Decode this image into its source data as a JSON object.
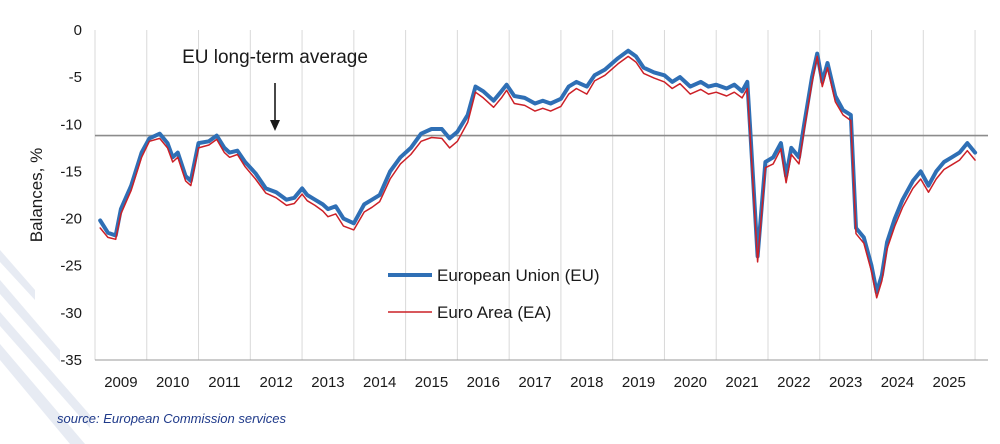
{
  "chart_data": {
    "type": "line",
    "ylabel": "Balances, %",
    "ylim": [
      -35,
      0
    ],
    "yticks": [
      0,
      -5,
      -10,
      -15,
      -20,
      -25,
      -30,
      -35
    ],
    "xlim": [
      2008.5,
      2025.75
    ],
    "year_labels": [
      "2009",
      "2010",
      "2011",
      "2012",
      "2013",
      "2014",
      "2015",
      "2016",
      "2017",
      "2018",
      "2019",
      "2020",
      "2021",
      "2022",
      "2023",
      "2024",
      "2025"
    ],
    "reference_line": {
      "value": -11.2,
      "label": "EU long-term average",
      "arrow_x": 2012.0
    },
    "series": [
      {
        "name": "European Union (EU)",
        "color": "#2f6fb5",
        "points": [
          [
            2008.6,
            -20.2
          ],
          [
            2008.75,
            -21.5
          ],
          [
            2008.9,
            -21.8
          ],
          [
            2009.0,
            -19.0
          ],
          [
            2009.2,
            -16.5
          ],
          [
            2009.4,
            -13.0
          ],
          [
            2009.55,
            -11.5
          ],
          [
            2009.75,
            -11.0
          ],
          [
            2009.9,
            -12.0
          ],
          [
            2010.0,
            -13.5
          ],
          [
            2010.1,
            -13.0
          ],
          [
            2010.25,
            -15.5
          ],
          [
            2010.35,
            -16.0
          ],
          [
            2010.5,
            -12.0
          ],
          [
            2010.7,
            -11.8
          ],
          [
            2010.85,
            -11.2
          ],
          [
            2011.0,
            -12.5
          ],
          [
            2011.1,
            -13.0
          ],
          [
            2011.25,
            -12.8
          ],
          [
            2011.4,
            -14.0
          ],
          [
            2011.6,
            -15.2
          ],
          [
            2011.8,
            -16.8
          ],
          [
            2012.0,
            -17.2
          ],
          [
            2012.2,
            -18.0
          ],
          [
            2012.35,
            -17.8
          ],
          [
            2012.5,
            -16.8
          ],
          [
            2012.6,
            -17.5
          ],
          [
            2012.75,
            -18.0
          ],
          [
            2012.9,
            -18.5
          ],
          [
            2013.0,
            -19.0
          ],
          [
            2013.15,
            -18.7
          ],
          [
            2013.3,
            -20.0
          ],
          [
            2013.5,
            -20.5
          ],
          [
            2013.7,
            -18.5
          ],
          [
            2013.85,
            -18.0
          ],
          [
            2014.0,
            -17.5
          ],
          [
            2014.2,
            -15.0
          ],
          [
            2014.4,
            -13.5
          ],
          [
            2014.6,
            -12.5
          ],
          [
            2014.8,
            -11.0
          ],
          [
            2015.0,
            -10.5
          ],
          [
            2015.2,
            -10.5
          ],
          [
            2015.35,
            -11.5
          ],
          [
            2015.5,
            -10.8
          ],
          [
            2015.7,
            -9.0
          ],
          [
            2015.85,
            -6.0
          ],
          [
            2016.0,
            -6.5
          ],
          [
            2016.2,
            -7.5
          ],
          [
            2016.35,
            -6.5
          ],
          [
            2016.45,
            -5.8
          ],
          [
            2016.6,
            -7.0
          ],
          [
            2016.8,
            -7.2
          ],
          [
            2017.0,
            -7.8
          ],
          [
            2017.15,
            -7.5
          ],
          [
            2017.3,
            -7.8
          ],
          [
            2017.5,
            -7.3
          ],
          [
            2017.65,
            -6.0
          ],
          [
            2017.8,
            -5.5
          ],
          [
            2018.0,
            -6.0
          ],
          [
            2018.15,
            -4.8
          ],
          [
            2018.35,
            -4.2
          ],
          [
            2018.6,
            -3.0
          ],
          [
            2018.8,
            -2.2
          ],
          [
            2018.95,
            -2.8
          ],
          [
            2019.1,
            -4.0
          ],
          [
            2019.3,
            -4.5
          ],
          [
            2019.5,
            -4.8
          ],
          [
            2019.65,
            -5.5
          ],
          [
            2019.8,
            -5.0
          ],
          [
            2020.0,
            -6.0
          ],
          [
            2020.2,
            -5.5
          ],
          [
            2020.35,
            -6.0
          ],
          [
            2020.5,
            -5.8
          ],
          [
            2020.7,
            -6.2
          ],
          [
            2020.85,
            -5.8
          ],
          [
            2021.0,
            -6.5
          ],
          [
            2021.1,
            -5.5
          ],
          [
            2021.15,
            -10.0
          ],
          [
            2021.3,
            -24.0
          ],
          [
            2021.45,
            -14.0
          ],
          [
            2021.6,
            -13.5
          ],
          [
            2021.75,
            -12.0
          ],
          [
            2021.85,
            -15.5
          ],
          [
            2021.95,
            -12.5
          ],
          [
            2022.1,
            -13.5
          ],
          [
            2022.2,
            -10.0
          ],
          [
            2022.35,
            -5.0
          ],
          [
            2022.45,
            -2.5
          ],
          [
            2022.55,
            -5.5
          ],
          [
            2022.65,
            -3.5
          ],
          [
            2022.8,
            -7.0
          ],
          [
            2022.95,
            -8.5
          ],
          [
            2023.1,
            -9.0
          ],
          [
            2023.2,
            -21.0
          ],
          [
            2023.35,
            -22.0
          ],
          [
            2023.5,
            -25.0
          ],
          [
            2023.6,
            -27.8
          ],
          [
            2023.7,
            -26.0
          ],
          [
            2023.8,
            -22.5
          ],
          [
            2023.95,
            -20.0
          ],
          [
            2024.1,
            -18.0
          ],
          [
            2024.3,
            -16.0
          ],
          [
            2024.45,
            -15.0
          ],
          [
            2024.6,
            -16.5
          ],
          [
            2024.75,
            -15.0
          ],
          [
            2024.9,
            -14.0
          ],
          [
            2025.05,
            -13.5
          ],
          [
            2025.2,
            -13.0
          ],
          [
            2025.35,
            -12.0
          ],
          [
            2025.5,
            -13.0
          ]
        ]
      },
      {
        "name": "Euro Area (EA)",
        "color": "#cc2027",
        "points": [
          [
            2008.6,
            -21.0
          ],
          [
            2008.75,
            -22.0
          ],
          [
            2008.9,
            -22.2
          ],
          [
            2009.0,
            -19.5
          ],
          [
            2009.2,
            -17.0
          ],
          [
            2009.4,
            -13.5
          ],
          [
            2009.55,
            -11.8
          ],
          [
            2009.75,
            -11.5
          ],
          [
            2009.9,
            -12.5
          ],
          [
            2010.0,
            -14.0
          ],
          [
            2010.1,
            -13.5
          ],
          [
            2010.25,
            -16.0
          ],
          [
            2010.35,
            -16.5
          ],
          [
            2010.5,
            -12.5
          ],
          [
            2010.7,
            -12.2
          ],
          [
            2010.85,
            -11.6
          ],
          [
            2011.0,
            -13.0
          ],
          [
            2011.1,
            -13.5
          ],
          [
            2011.25,
            -13.2
          ],
          [
            2011.4,
            -14.5
          ],
          [
            2011.6,
            -15.8
          ],
          [
            2011.8,
            -17.3
          ],
          [
            2012.0,
            -17.8
          ],
          [
            2012.2,
            -18.6
          ],
          [
            2012.35,
            -18.4
          ],
          [
            2012.5,
            -17.4
          ],
          [
            2012.6,
            -18.1
          ],
          [
            2012.75,
            -18.6
          ],
          [
            2012.9,
            -19.2
          ],
          [
            2013.0,
            -19.8
          ],
          [
            2013.15,
            -19.5
          ],
          [
            2013.3,
            -20.8
          ],
          [
            2013.5,
            -21.2
          ],
          [
            2013.7,
            -19.3
          ],
          [
            2013.85,
            -18.8
          ],
          [
            2014.0,
            -18.2
          ],
          [
            2014.2,
            -15.8
          ],
          [
            2014.4,
            -14.2
          ],
          [
            2014.6,
            -13.2
          ],
          [
            2014.8,
            -11.8
          ],
          [
            2015.0,
            -11.4
          ],
          [
            2015.2,
            -11.5
          ],
          [
            2015.35,
            -12.5
          ],
          [
            2015.5,
            -11.8
          ],
          [
            2015.7,
            -9.8
          ],
          [
            2015.85,
            -6.6
          ],
          [
            2016.0,
            -7.2
          ],
          [
            2016.2,
            -8.2
          ],
          [
            2016.35,
            -7.2
          ],
          [
            2016.45,
            -6.4
          ],
          [
            2016.6,
            -7.8
          ],
          [
            2016.8,
            -8.0
          ],
          [
            2017.0,
            -8.6
          ],
          [
            2017.15,
            -8.3
          ],
          [
            2017.3,
            -8.6
          ],
          [
            2017.5,
            -8.1
          ],
          [
            2017.65,
            -6.8
          ],
          [
            2017.8,
            -6.2
          ],
          [
            2018.0,
            -6.8
          ],
          [
            2018.15,
            -5.4
          ],
          [
            2018.35,
            -4.8
          ],
          [
            2018.6,
            -3.6
          ],
          [
            2018.8,
            -2.8
          ],
          [
            2018.95,
            -3.4
          ],
          [
            2019.1,
            -4.6
          ],
          [
            2019.3,
            -5.1
          ],
          [
            2019.5,
            -5.5
          ],
          [
            2019.65,
            -6.2
          ],
          [
            2019.8,
            -5.7
          ],
          [
            2020.0,
            -6.8
          ],
          [
            2020.2,
            -6.3
          ],
          [
            2020.35,
            -6.8
          ],
          [
            2020.5,
            -6.6
          ],
          [
            2020.7,
            -7.0
          ],
          [
            2020.85,
            -6.6
          ],
          [
            2021.0,
            -7.2
          ],
          [
            2021.1,
            -6.2
          ],
          [
            2021.15,
            -10.8
          ],
          [
            2021.3,
            -24.6
          ],
          [
            2021.45,
            -14.6
          ],
          [
            2021.6,
            -14.2
          ],
          [
            2021.75,
            -12.6
          ],
          [
            2021.85,
            -16.2
          ],
          [
            2021.95,
            -13.2
          ],
          [
            2022.1,
            -14.2
          ],
          [
            2022.2,
            -10.6
          ],
          [
            2022.35,
            -5.6
          ],
          [
            2022.45,
            -2.8
          ],
          [
            2022.55,
            -6.0
          ],
          [
            2022.65,
            -4.0
          ],
          [
            2022.8,
            -7.6
          ],
          [
            2022.95,
            -9.0
          ],
          [
            2023.1,
            -9.6
          ],
          [
            2023.2,
            -21.6
          ],
          [
            2023.35,
            -22.6
          ],
          [
            2023.5,
            -25.6
          ],
          [
            2023.6,
            -28.4
          ],
          [
            2023.7,
            -26.6
          ],
          [
            2023.8,
            -23.2
          ],
          [
            2023.95,
            -20.8
          ],
          [
            2024.1,
            -18.8
          ],
          [
            2024.3,
            -16.8
          ],
          [
            2024.45,
            -15.8
          ],
          [
            2024.6,
            -17.2
          ],
          [
            2024.75,
            -15.8
          ],
          [
            2024.9,
            -14.8
          ],
          [
            2025.05,
            -14.3
          ],
          [
            2025.2,
            -13.8
          ],
          [
            2025.35,
            -12.8
          ],
          [
            2025.5,
            -13.8
          ]
        ]
      }
    ]
  },
  "source_note": "source: European Commission services"
}
